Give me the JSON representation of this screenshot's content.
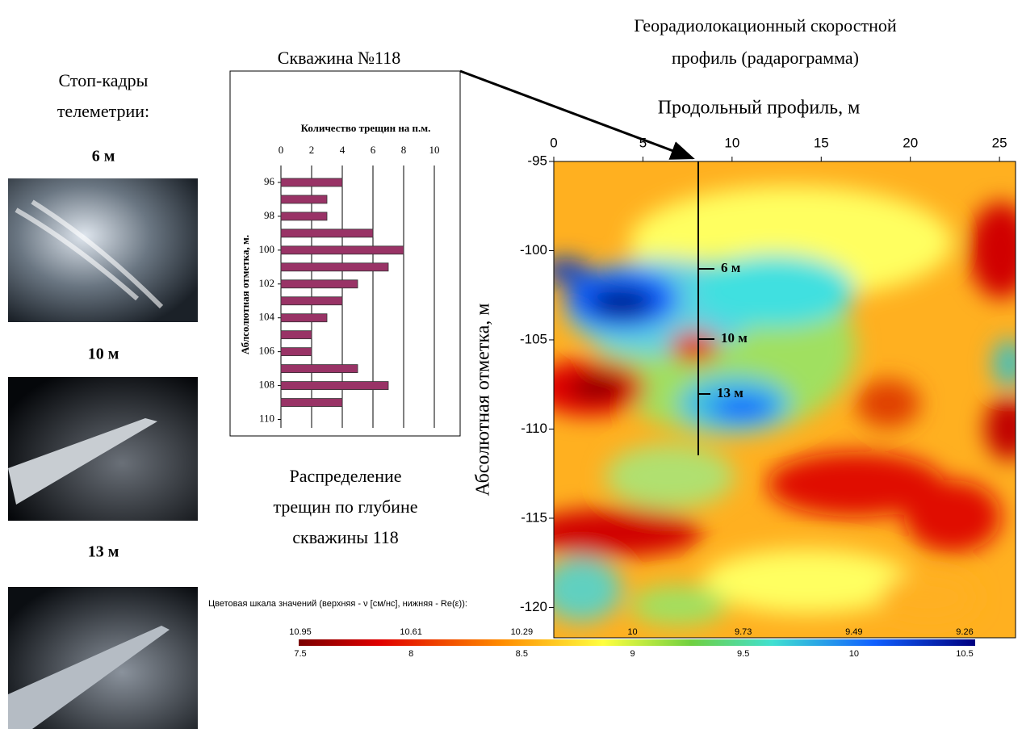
{
  "telemetry": {
    "title": [
      "Стоп-кадры",
      "телеметрии:"
    ],
    "frames": [
      "6 м",
      "10 м",
      "13 м"
    ]
  },
  "well_label": "Скважина №118",
  "profile_title": [
    "Георадиолокационный скоростной",
    "профиль (радарограмма)"
  ],
  "bar_caption": [
    "Распределение",
    "трещин по глубине",
    "скважины 118"
  ],
  "chart_data": [
    {
      "type": "bar",
      "orientation": "horizontal",
      "title": "Количество трещин на п.м.",
      "y_label": "Аблсолютная отметка, м.",
      "x": [
        96,
        97,
        98,
        99,
        100,
        101,
        102,
        103,
        104,
        105,
        106,
        107,
        108,
        109
      ],
      "values": [
        4,
        3,
        3,
        6,
        8,
        7,
        5,
        4,
        3,
        2,
        2,
        5,
        7,
        4
      ],
      "color": "#993366",
      "xlim": [
        0,
        10
      ],
      "xticks": [
        0,
        2,
        4,
        6,
        8,
        10
      ],
      "ylim": [
        95,
        110.5
      ],
      "yticks": [
        96,
        98,
        100,
        102,
        104,
        106,
        108,
        110
      ],
      "grid": true
    },
    {
      "type": "contour",
      "x_label": "Продольный профиль, м",
      "y_label": "Абсолютная отметка, м",
      "xlim": [
        0,
        25.9
      ],
      "xticks": [
        0,
        5,
        10,
        15,
        20,
        25
      ],
      "ylim": [
        -121.7,
        -95
      ],
      "yticks": [
        -95,
        -100,
        -105,
        -110,
        -115,
        -120
      ],
      "annotations": [
        "6 м",
        "10 м",
        "13 м"
      ]
    }
  ],
  "colorbar": {
    "title": "Цветовая шкала значений (верхняя - ν [см/нс], нижняя - Re(ε)):",
    "top_labels": [
      10.95,
      10.61,
      10.29,
      10,
      9.73,
      9.49,
      9.26
    ],
    "bottom_labels": [
      7.5,
      8,
      8.5,
      9,
      9.5,
      10,
      10.5
    ]
  }
}
